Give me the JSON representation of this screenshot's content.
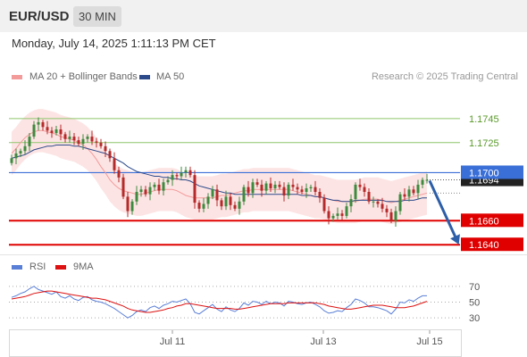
{
  "header": {
    "pair": "EUR/USD",
    "timeframe": "30 MIN"
  },
  "timestamp": "Monday, July 14, 2025 1:11:13 PM CET",
  "legend": {
    "bb": "MA 20 + Bollinger Bands",
    "ma50": "MA 50",
    "rsi": "RSI",
    "rsi_ma": "9MA"
  },
  "credit": "Research © 2025 Trading Central",
  "colors": {
    "bb": "#f39a9a",
    "bb_fill": "#fde4e4",
    "ma50": "#2c4a8a",
    "up": "#3e8a3e",
    "down": "#b52a2a",
    "resistance": "#8dc66b",
    "support": "#e00000",
    "pivot": "#3a6fd8",
    "arrow": "#2e5ea8",
    "rsi": "#5a7fd6",
    "rsi_ma": "#dd1111"
  },
  "chart_data": [
    {
      "type": "candlestick",
      "title": "EUR/USD 30 MIN",
      "x_ticks": [
        "Jul 11",
        "Jul 13",
        "Jul 15"
      ],
      "ylim": [
        1.1632,
        1.1762
      ],
      "levels": [
        {
          "label": "1.1745",
          "value": 1.1745,
          "kind": "resistance"
        },
        {
          "label": "1.1725",
          "value": 1.1725,
          "kind": "resistance"
        },
        {
          "label": "1.1700",
          "value": 1.17,
          "kind": "pivot"
        },
        {
          "label": "1.1660",
          "value": 1.166,
          "kind": "support"
        },
        {
          "label": "1.1640",
          "value": 1.164,
          "kind": "support"
        }
      ],
      "last_price": "1.1694",
      "close": [
        1.1712,
        1.1716,
        1.1718,
        1.1722,
        1.173,
        1.174,
        1.1742,
        1.1738,
        1.1735,
        1.1733,
        1.1736,
        1.1732,
        1.1728,
        1.173,
        1.1727,
        1.1724,
        1.1728,
        1.173,
        1.1726,
        1.1725,
        1.1722,
        1.1718,
        1.1712,
        1.1702,
        1.1696,
        1.168,
        1.1668,
        1.1676,
        1.1684,
        1.1686,
        1.1682,
        1.1688,
        1.169,
        1.1685,
        1.1692,
        1.1694,
        1.1698,
        1.1697,
        1.17,
        1.1702,
        1.1698,
        1.1675,
        1.167,
        1.1674,
        1.168,
        1.1686,
        1.1677,
        1.1672,
        1.168,
        1.1673,
        1.167,
        1.1676,
        1.1688,
        1.1683,
        1.1692,
        1.169,
        1.1685,
        1.1691,
        1.1687,
        1.169,
        1.1688,
        1.1681,
        1.169,
        1.1688,
        1.1686,
        1.1684,
        1.1687,
        1.1688,
        1.1684,
        1.1679,
        1.1668,
        1.1662,
        1.1664,
        1.1666,
        1.1664,
        1.1672,
        1.1678,
        1.169,
        1.1688,
        1.1684,
        1.1676,
        1.1676,
        1.1674,
        1.167,
        1.1667,
        1.166,
        1.1668,
        1.1682,
        1.168,
        1.1686,
        1.1683,
        1.169,
        1.1694,
        1.1694
      ],
      "ma50": [
        1.1712,
        1.1713,
        1.1714,
        1.1715,
        1.1717,
        1.1719,
        1.172,
        1.1721,
        1.1722,
        1.1722,
        1.1723,
        1.1723,
        1.1723,
        1.1723,
        1.1722,
        1.1722,
        1.1721,
        1.172,
        1.1719,
        1.1718,
        1.1717,
        1.1716,
        1.1714,
        1.1712,
        1.171,
        1.1708,
        1.1705,
        1.1703,
        1.1701,
        1.17,
        1.1699,
        1.1698,
        1.1697,
        1.1697,
        1.1696,
        1.1696,
        1.1695,
        1.1695,
        1.1694,
        1.1694,
        1.1693,
        1.1691,
        1.1689,
        1.1688,
        1.1687,
        1.1686,
        1.1685,
        1.1684,
        1.1683,
        1.1683,
        1.1682,
        1.1682,
        1.1682,
        1.1682,
        1.1682,
        1.1682,
        1.1682,
        1.1682,
        1.1682,
        1.1682,
        1.1682,
        1.1682,
        1.1682,
        1.1682,
        1.1682,
        1.1681,
        1.1681,
        1.1681,
        1.168,
        1.168,
        1.1679,
        1.1678,
        1.1677,
        1.1677,
        1.1676,
        1.1676,
        1.1676,
        1.1677,
        1.1677,
        1.1677,
        1.1677,
        1.1677,
        1.1677,
        1.1677,
        1.1676,
        1.1676,
        1.1676,
        1.1676,
        1.1677,
        1.1677,
        1.1677,
        1.1678,
        1.1679,
        1.1679
      ],
      "ma20": [
        1.1716,
        1.172,
        1.1725,
        1.1729,
        1.1732,
        1.1734,
        1.1735,
        1.1735,
        1.1734,
        1.1733,
        1.1732,
        1.173,
        1.1729,
        1.1728,
        1.1727,
        1.1725,
        1.1723,
        1.172,
        1.1716,
        1.1711,
        1.1705,
        1.17,
        1.1694,
        1.169,
        1.1687,
        1.1685,
        1.1684,
        1.1683,
        1.1682,
        1.1682,
        1.1683,
        1.1684,
        1.1685,
        1.1686,
        1.1686,
        1.1686,
        1.1686,
        1.1685,
        1.1683,
        1.1681,
        1.168,
        1.1679,
        1.1679,
        1.1679,
        1.1679,
        1.1679,
        1.168,
        1.1681,
        1.1681,
        1.1682,
        1.1683,
        1.1684,
        1.1685,
        1.1685,
        1.1686,
        1.1686,
        1.1686,
        1.1686,
        1.1686,
        1.1686,
        1.1686,
        1.1686,
        1.1686,
        1.1685,
        1.1684,
        1.1683,
        1.1682,
        1.1681,
        1.168,
        1.168,
        1.1679,
        1.1678,
        1.1677,
        1.1676,
        1.1676,
        1.1676,
        1.1676,
        1.1676,
        1.1677,
        1.1678,
        1.1678,
        1.1678,
        1.1678,
        1.1677,
        1.1676,
        1.1675,
        1.1676,
        1.1677,
        1.1678,
        1.1679,
        1.168,
        1.1681,
        1.1682,
        1.1683
      ],
      "bb_width": 0.0018,
      "forecast": {
        "from": 1.1694,
        "to": 1.164
      }
    },
    {
      "type": "line",
      "title": "RSI",
      "ylim": [
        20,
        80
      ],
      "y_ticks": [
        "70",
        "50",
        "30"
      ],
      "series": [
        {
          "name": "RSI",
          "values": [
            56,
            58,
            61,
            63,
            67,
            70,
            66,
            64,
            62,
            60,
            63,
            57,
            55,
            58,
            54,
            52,
            56,
            57,
            53,
            51,
            50,
            48,
            45,
            42,
            38,
            34,
            30,
            33,
            38,
            40,
            38,
            43,
            45,
            42,
            46,
            48,
            51,
            50,
            52,
            54,
            48,
            37,
            35,
            39,
            43,
            47,
            41,
            38,
            44,
            40,
            38,
            42,
            49,
            46,
            51,
            50,
            47,
            51,
            48,
            50,
            49,
            45,
            51,
            50,
            48,
            47,
            49,
            50,
            47,
            44,
            39,
            36,
            37,
            39,
            38,
            43,
            47,
            54,
            52,
            49,
            44,
            44,
            43,
            41,
            39,
            35,
            41,
            50,
            49,
            53,
            51,
            55,
            58,
            58
          ]
        },
        {
          "name": "9MA",
          "values": [
            54,
            55,
            56,
            57,
            59,
            61,
            62,
            63,
            64,
            64,
            63,
            62,
            61,
            60,
            59,
            58,
            57,
            56,
            55,
            55,
            54,
            53,
            51,
            49,
            47,
            45,
            42,
            40,
            39,
            38,
            37,
            37,
            38,
            39,
            40,
            42,
            43,
            45,
            46,
            48,
            48,
            47,
            46,
            45,
            44,
            43,
            42,
            42,
            42,
            42,
            41,
            41,
            42,
            43,
            44,
            45,
            46,
            47,
            48,
            48,
            48,
            48,
            49,
            49,
            49,
            49,
            49,
            49,
            49,
            48,
            47,
            45,
            44,
            43,
            42,
            41,
            41,
            42,
            43,
            44,
            45,
            46,
            46,
            46,
            45,
            44,
            43,
            43,
            43,
            44,
            45,
            47,
            49,
            51
          ]
        }
      ]
    }
  ]
}
